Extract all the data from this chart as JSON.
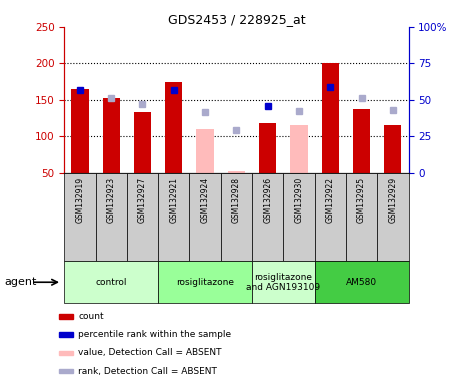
{
  "title": "GDS2453 / 228925_at",
  "samples": [
    "GSM132919",
    "GSM132923",
    "GSM132927",
    "GSM132921",
    "GSM132924",
    "GSM132928",
    "GSM132926",
    "GSM132930",
    "GSM132922",
    "GSM132925",
    "GSM132929"
  ],
  "count_values": [
    165,
    152,
    134,
    174,
    null,
    null,
    118,
    null,
    200,
    138,
    115
  ],
  "count_absent_values": [
    null,
    null,
    null,
    null,
    110,
    52,
    null,
    115,
    null,
    null,
    null
  ],
  "percentile_values": [
    163,
    null,
    null,
    163,
    null,
    null,
    142,
    null,
    168,
    null,
    null
  ],
  "percentile_absent_values": [
    null,
    153,
    144,
    null,
    134,
    109,
    null,
    135,
    null,
    152,
    136
  ],
  "groups": [
    {
      "label": "control",
      "start": 0,
      "end": 3,
      "color": "#ccffcc"
    },
    {
      "label": "rosiglitazone",
      "start": 3,
      "end": 6,
      "color": "#99ff99"
    },
    {
      "label": "rosiglitazone\nand AGN193109",
      "start": 6,
      "end": 8,
      "color": "#ccffcc"
    },
    {
      "label": "AM580",
      "start": 8,
      "end": 11,
      "color": "#44cc44"
    }
  ],
  "ylim_left": [
    50,
    250
  ],
  "ylim_right": [
    0,
    100
  ],
  "yticks_left": [
    50,
    100,
    150,
    200,
    250
  ],
  "yticks_right": [
    0,
    25,
    50,
    75,
    100
  ],
  "ytick_labels_right": [
    "0",
    "25",
    "50",
    "75",
    "100%"
  ],
  "color_count": "#cc0000",
  "color_count_absent": "#ffbbbb",
  "color_percentile": "#0000cc",
  "color_percentile_absent": "#aaaacc",
  "grid_dotted_at": [
    100,
    150,
    200
  ],
  "agent_label": "agent",
  "legend_items": [
    {
      "color": "#cc0000",
      "label": "count"
    },
    {
      "color": "#0000cc",
      "label": "percentile rank within the sample"
    },
    {
      "color": "#ffbbbb",
      "label": "value, Detection Call = ABSENT"
    },
    {
      "color": "#aaaacc",
      "label": "rank, Detection Call = ABSENT"
    }
  ]
}
